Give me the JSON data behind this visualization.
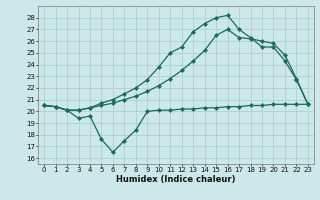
{
  "xlabel": "Humidex (Indice chaleur)",
  "bg_color": "#cce8e8",
  "line_color": "#1a6b5a",
  "xlim": [
    -0.5,
    23.5
  ],
  "ylim": [
    15.5,
    29.0
  ],
  "yticks": [
    16,
    17,
    18,
    19,
    20,
    21,
    22,
    23,
    24,
    25,
    26,
    27,
    28
  ],
  "xticks": [
    0,
    1,
    2,
    3,
    4,
    5,
    6,
    7,
    8,
    9,
    10,
    11,
    12,
    13,
    14,
    15,
    16,
    17,
    18,
    19,
    20,
    21,
    22,
    23
  ],
  "line1_x": [
    0,
    1,
    2,
    3,
    4,
    5,
    6,
    7,
    8,
    9,
    10,
    11,
    12,
    13,
    14,
    15,
    16,
    17,
    18,
    19,
    20,
    21,
    22,
    23
  ],
  "line1_y": [
    20.5,
    20.4,
    20.1,
    20.1,
    20.3,
    20.7,
    21.0,
    21.5,
    22.0,
    22.7,
    23.8,
    25.0,
    25.5,
    26.8,
    27.5,
    28.0,
    28.2,
    27.0,
    26.3,
    25.5,
    25.5,
    24.3,
    22.7,
    20.6
  ],
  "line2_x": [
    0,
    1,
    2,
    3,
    4,
    5,
    6,
    7,
    8,
    9,
    10,
    11,
    12,
    13,
    14,
    15,
    16,
    17,
    18,
    19,
    20,
    21,
    22,
    23
  ],
  "line2_y": [
    20.5,
    20.4,
    20.1,
    20.1,
    20.3,
    20.5,
    20.7,
    21.0,
    21.3,
    21.7,
    22.2,
    22.8,
    23.5,
    24.3,
    25.2,
    26.5,
    27.0,
    26.3,
    26.2,
    26.0,
    25.8,
    24.8,
    22.8,
    20.6
  ],
  "line3_x": [
    0,
    1,
    2,
    3,
    4,
    5,
    6,
    7,
    8,
    9,
    10,
    11,
    12,
    13,
    14,
    15,
    16,
    17,
    18,
    19,
    20,
    21,
    22,
    23
  ],
  "line3_y": [
    20.5,
    20.4,
    20.1,
    19.4,
    19.6,
    17.6,
    16.5,
    17.5,
    18.4,
    20.0,
    20.1,
    20.1,
    20.2,
    20.2,
    20.3,
    20.3,
    20.4,
    20.4,
    20.5,
    20.5,
    20.6,
    20.6,
    20.6,
    20.6
  ],
  "tick_fontsize": 5.0,
  "xlabel_fontsize": 6.0,
  "marker_size": 2.5,
  "linewidth": 0.9
}
